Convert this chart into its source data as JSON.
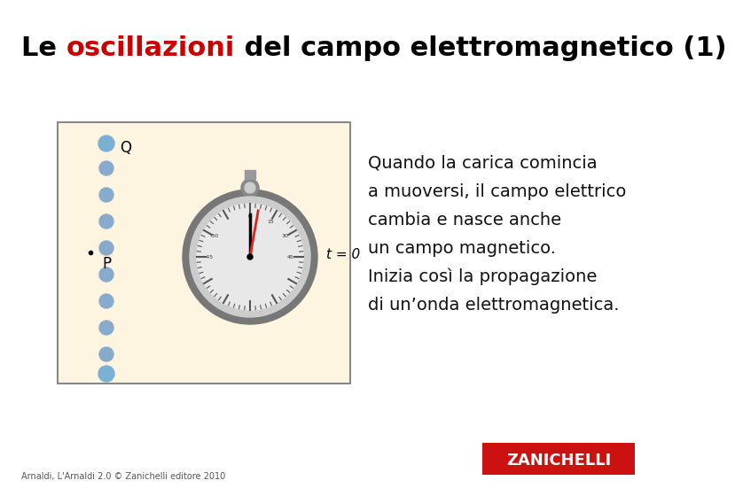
{
  "title_parts": [
    {
      "text": "Le ",
      "color": "#000000"
    },
    {
      "text": "oscillazioni",
      "color": "#cc0000"
    },
    {
      "text": " del campo elettromagnetico (1)",
      "color": "#000000"
    }
  ],
  "body_text_lines": [
    "Quando la carica comincia",
    "a muoversi, il campo elettrico",
    "cambia e nasce anche",
    "un campo magnetico.",
    "Inizia così la propagazione",
    "di un’onda elettromagnetica."
  ],
  "footer_text": "Arnaldi, L'Arnaldi 2.0 © Zanichelli editore 2010",
  "zanichelli_text": "ZANICHELLI",
  "bg_color": "#ffffff",
  "panel_bg": "#fdf5e0",
  "panel_border": "#888888",
  "dot_color_main": "#6699cc",
  "dot_color_top": "#5588bb",
  "clock_outer": "#888888",
  "clock_inner": "#dddddd",
  "clock_face": "#f0f0f0",
  "zanichelli_bg": "#cc1111",
  "zanichelli_fg": "#ffffff",
  "title_fontsize": 22,
  "body_fontsize": 14,
  "footer_fontsize": 7,
  "zanichelli_fontsize": 13
}
